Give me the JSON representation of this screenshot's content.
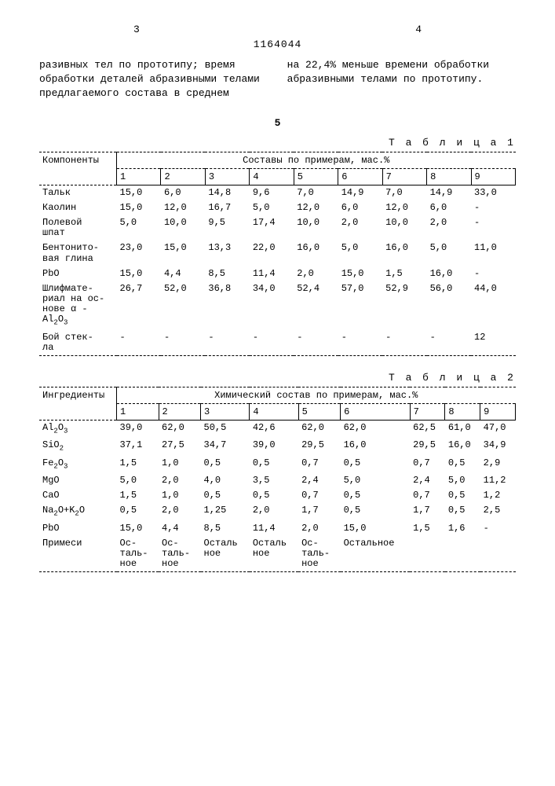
{
  "doc_number": "1164044",
  "page_left": "3",
  "page_right": "4",
  "center_num": "5",
  "top_text_left": "разивных тел по прототипу; время обработки деталей абразивными телами предлагаемого состава в среднем",
  "top_text_right": "на 22,4% меньше времени обработки абразивными телами по прототипу.",
  "table1": {
    "title": "Т а б л и ц а 1",
    "header_left": "Компоненты",
    "header_group": "Составы по примерам, мас.%",
    "cols": [
      "1",
      "2",
      "3",
      "4",
      "5",
      "6",
      "7",
      "8",
      "9"
    ],
    "rows": [
      {
        "label": "Тальк",
        "v": [
          "15,0",
          "6,0",
          "14,8",
          "9,6",
          "7,0",
          "14,9",
          "7,0",
          "14,9",
          "33,0"
        ]
      },
      {
        "label": "Каолин",
        "v": [
          "15,0",
          "12,0",
          "16,7",
          "5,0",
          "12,0",
          "6,0",
          "12,0",
          "6,0",
          "-"
        ]
      },
      {
        "label": "Полевой\nшпат",
        "v": [
          "5,0",
          "10,0",
          "9,5",
          "17,4",
          "10,0",
          "2,0",
          "10,0",
          "2,0",
          "-"
        ]
      },
      {
        "label": "Бентонито-\nвая глина",
        "v": [
          "23,0",
          "15,0",
          "13,3",
          "22,0",
          "16,0",
          "5,0",
          "16,0",
          "5,0",
          "11,0"
        ]
      },
      {
        "label": "PbO",
        "v": [
          "15,0",
          "4,4",
          "8,5",
          "11,4",
          "2,0",
          "15,0",
          "1,5",
          "16,0",
          "-"
        ]
      },
      {
        "label": "Шлифмате-\nриал на ос-\nнове α -\nAl₂O₃",
        "v": [
          "26,7",
          "52,0",
          "36,8",
          "34,0",
          "52,4",
          "57,0",
          "52,9",
          "56,0",
          "44,0"
        ]
      },
      {
        "label": "Бой стек-\nла",
        "v": [
          "-",
          "-",
          "-",
          "-",
          "-",
          "-",
          "-",
          "-",
          "12"
        ]
      }
    ]
  },
  "table2": {
    "title": "Т а б л и ц а 2",
    "header_left": "Ингредиенты",
    "header_group": "Химический состав по примерам, мас.%",
    "cols": [
      "1",
      "2",
      "3",
      "4",
      "5",
      "6",
      "7",
      "8",
      "9"
    ],
    "rows": [
      {
        "label": "Al₂O₃",
        "v": [
          "39,0",
          "62,0",
          "50,5",
          "42,6",
          "62,0",
          "62,0",
          "62,5",
          "61,0",
          "47,0"
        ]
      },
      {
        "label": "SiO₂",
        "v": [
          "37,1",
          "27,5",
          "34,7",
          "39,0",
          "29,5",
          "16,0",
          "29,5",
          "16,0",
          "34,9"
        ]
      },
      {
        "label": "Fe₂O₃",
        "v": [
          "1,5",
          "1,0",
          "0,5",
          "0,5",
          "0,7",
          "0,5",
          "0,7",
          "0,5",
          "2,9"
        ]
      },
      {
        "label": "MgO",
        "v": [
          "5,0",
          "2,0",
          "4,0",
          "3,5",
          "2,4",
          "5,0",
          "2,4",
          "5,0",
          "11,2"
        ]
      },
      {
        "label": "CaO",
        "v": [
          "1,5",
          "1,0",
          "0,5",
          "0,5",
          "0,7",
          "0,5",
          "0,7",
          "0,5",
          "1,2"
        ]
      },
      {
        "label": "Na₂O+K₂O",
        "v": [
          "0,5",
          "2,0",
          "1,25",
          "2,0",
          "1,7",
          "0,5",
          "1,7",
          "0,5",
          "2,5"
        ]
      },
      {
        "label": "PbO",
        "v": [
          "15,0",
          "4,4",
          "8,5",
          "11,4",
          "2,0",
          "15,0",
          "1,5",
          "1,6",
          "-"
        ]
      },
      {
        "label": "Примеси",
        "v": [
          "Ос-\nталь-\nное",
          "Ос-\nталь-\nное",
          "Осталь\nное",
          "Осталь\nное",
          "Ос-\nталь-\nное",
          "Остальное",
          "",
          "",
          ""
        ]
      }
    ]
  }
}
